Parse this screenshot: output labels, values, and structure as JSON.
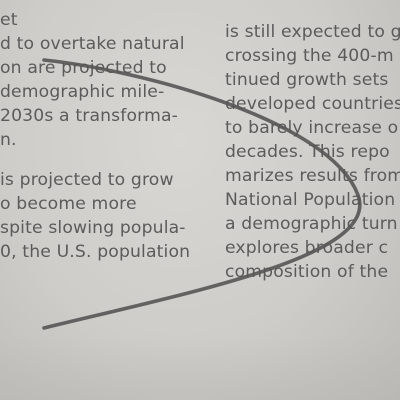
{
  "left_column": {
    "paragraph_1": [
      "et",
      "d to overtake natural",
      "on are projected to",
      "demographic mile-",
      "2030s a transforma-",
      "n."
    ],
    "paragraph_2": [
      " is projected to grow",
      "o become more",
      "spite slowing popula-",
      "0, the U.S. population"
    ]
  },
  "right_column": {
    "lines": [
      "is still expected to g",
      "crossing the 400-m",
      "tinued growth sets",
      "developed countries",
      "to barely increase o",
      "decades. This repo",
      "marizes results from",
      "National Population",
      "a demographic turn",
      "explores broader c",
      "composition of the"
    ]
  },
  "annotation": {
    "stroke_color": "#555555"
  }
}
